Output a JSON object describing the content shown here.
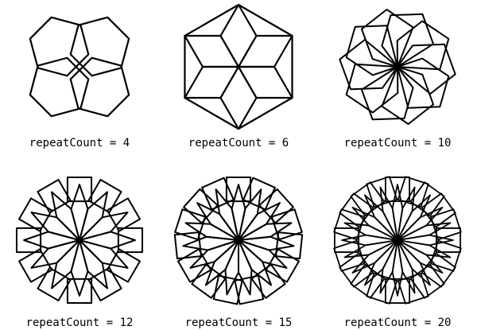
{
  "figures": [
    {
      "caption": "repeatCount = 4",
      "repeat_count": 4,
      "petal_sides": 6,
      "rotation_offset_deg": 15
    },
    {
      "caption": "repeatCount = 6",
      "repeat_count": 6,
      "petal_sides": 4,
      "rotation_offset_deg": 30
    },
    {
      "caption": "repeatCount = 10",
      "repeat_count": 10,
      "petal_sides": 5,
      "rotation_offset_deg": 0
    },
    {
      "caption": "repeatCount = 12",
      "repeat_count": 12,
      "petal_sides": 4,
      "rotation_offset_deg": 0
    },
    {
      "caption": "repeatCount = 15",
      "repeat_count": 15,
      "petal_sides": 4,
      "rotation_offset_deg": 0
    },
    {
      "caption": "repeatCount = 20",
      "repeat_count": 20,
      "petal_sides": 4,
      "rotation_offset_deg": 0
    }
  ],
  "stroke_color": "#000000"
}
